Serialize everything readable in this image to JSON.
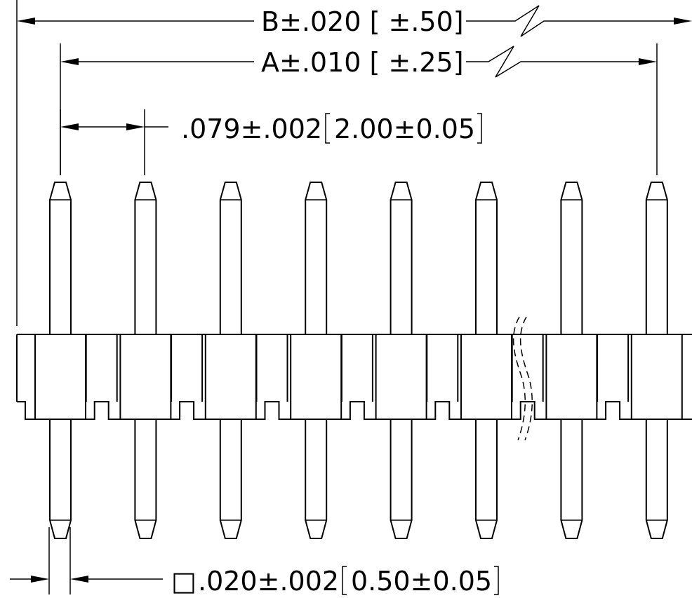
{
  "dimensions": {
    "overall_b": "B±.020 [ ±.50]",
    "overall_a": "A±.010 [ ±.25]",
    "pitch": ".079±.002",
    "pitch_metric": "2.00±0.05",
    "pin_size_symbol": "□",
    "pin_size": ".020±.002",
    "pin_size_metric": "0.50±0.05"
  },
  "pins": [
    {
      "position": 1
    },
    {
      "position": 2
    },
    {
      "position": 3
    },
    {
      "position": 4
    },
    {
      "position": 5
    },
    {
      "position": 6
    },
    {
      "position": 7
    },
    {
      "position": 8
    }
  ],
  "break_between_positions": [
    6,
    7
  ],
  "colors": {
    "line": "#000000",
    "background": "#ffffff"
  }
}
